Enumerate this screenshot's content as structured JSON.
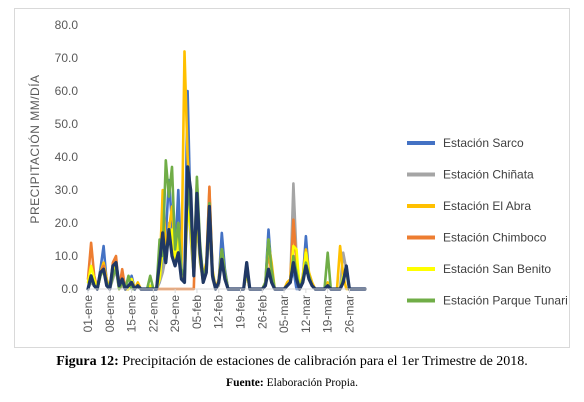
{
  "caption": {
    "label": "Figura 12:",
    "text": " Precipitación de estaciones de calibración para el 1er Trimestre de 2018.",
    "source_label": "Fuente:",
    "source_text": " Elaboración Propia."
  },
  "chart_data": {
    "type": "line",
    "title": "",
    "xlabel": "",
    "ylabel": "PRECIPITACIÓN MM/DÍA",
    "ylim": [
      0,
      80
    ],
    "yticks": [
      "0.0",
      "10.0",
      "20.0",
      "30.0",
      "40.0",
      "50.0",
      "60.0",
      "70.0",
      "80.0"
    ],
    "grid": false,
    "legend": "right",
    "x_tick_labels": [
      "01-ene",
      "08-ene",
      "15-ene",
      "22-ene",
      "29-ene",
      "05-feb",
      "12-feb",
      "19-feb",
      "26-feb",
      "05-mar",
      "12-mar",
      "19-mar",
      "26-mar"
    ],
    "x_tick_days": [
      1,
      8,
      15,
      22,
      29,
      36,
      43,
      50,
      57,
      64,
      71,
      78,
      85
    ],
    "x_days": [
      1,
      2,
      3,
      4,
      5,
      6,
      7,
      8,
      9,
      10,
      11,
      12,
      13,
      14,
      15,
      16,
      17,
      18,
      19,
      20,
      21,
      22,
      23,
      24,
      25,
      26,
      27,
      28,
      29,
      30,
      31,
      32,
      33,
      34,
      35,
      36,
      37,
      38,
      39,
      40,
      41,
      42,
      43,
      44,
      45,
      46,
      47,
      48,
      49,
      50,
      51,
      52,
      53,
      54,
      55,
      56,
      57,
      58,
      59,
      60,
      61,
      62,
      63,
      64,
      65,
      66,
      67,
      68,
      69,
      70,
      71,
      72,
      73,
      74,
      75,
      76,
      77,
      78,
      79,
      80,
      81,
      82,
      83,
      84,
      85,
      86,
      87,
      88,
      89,
      90
    ],
    "series": [
      {
        "name": "Estación Sarco",
        "color": "#4472c4",
        "values": [
          0,
          3,
          1,
          0,
          6,
          13,
          2,
          0,
          5,
          8,
          0,
          2,
          0,
          0,
          4,
          0,
          1,
          0,
          0,
          0,
          1,
          0,
          0,
          2,
          8,
          16,
          33,
          20,
          10,
          30,
          5,
          3,
          60,
          20,
          5,
          29,
          10,
          2,
          6,
          25,
          5,
          0,
          2,
          17,
          6,
          0,
          0,
          0,
          0,
          0,
          0,
          8,
          0,
          0,
          0,
          0,
          0,
          2,
          18,
          5,
          0,
          0,
          0,
          0,
          1,
          2,
          6,
          0,
          0,
          3,
          16,
          4,
          1,
          0,
          0,
          0,
          0,
          1,
          0,
          0,
          0,
          0,
          2,
          7,
          0,
          0,
          0,
          0,
          0,
          0
        ]
      },
      {
        "name": "Estación Chiñata",
        "color": "#a5a5a5",
        "values": [
          0,
          2,
          1,
          0,
          4,
          6,
          2,
          0,
          3,
          6,
          0,
          1,
          0,
          0,
          2,
          0,
          1,
          0,
          0,
          0,
          1,
          0,
          0,
          2,
          5,
          10,
          20,
          15,
          8,
          18,
          4,
          2,
          30,
          15,
          4,
          20,
          8,
          2,
          5,
          18,
          3,
          0,
          1,
          10,
          4,
          0,
          0,
          0,
          0,
          0,
          0,
          5,
          0,
          0,
          0,
          0,
          0,
          1,
          12,
          4,
          0,
          0,
          0,
          0,
          1,
          2,
          32,
          10,
          0,
          2,
          10,
          3,
          1,
          0,
          0,
          0,
          0,
          1,
          0,
          0,
          0,
          0,
          11,
          6,
          0,
          0,
          0,
          0,
          0,
          0
        ]
      },
      {
        "name": "Estación El Abra",
        "color": "#ffc000",
        "values": [
          0,
          4,
          2,
          0,
          5,
          8,
          3,
          0,
          6,
          9,
          0,
          3,
          0,
          0,
          3,
          0,
          2,
          0,
          0,
          0,
          1,
          0,
          0,
          4,
          30,
          12,
          18,
          25,
          10,
          20,
          6,
          72,
          40,
          25,
          8,
          30,
          12,
          4,
          8,
          30,
          6,
          0,
          3,
          12,
          5,
          0,
          0,
          0,
          0,
          0,
          0,
          6,
          0,
          0,
          0,
          0,
          0,
          2,
          14,
          8,
          0,
          0,
          0,
          0,
          2,
          3,
          20,
          8,
          0,
          4,
          12,
          5,
          2,
          0,
          0,
          0,
          0,
          2,
          0,
          0,
          0,
          13,
          4,
          0,
          0,
          0,
          0,
          0,
          0,
          0
        ]
      },
      {
        "name": "Estación Chimboco",
        "color": "#ed7d31",
        "values": [
          3,
          14,
          4,
          0,
          5,
          7,
          2,
          0,
          8,
          10,
          0,
          6,
          0,
          0,
          3,
          0,
          1,
          0,
          0,
          0,
          0,
          0,
          0,
          0,
          0,
          0,
          0,
          0,
          0,
          0,
          0,
          0,
          0,
          0,
          0,
          33,
          10,
          2,
          6,
          31,
          4,
          0,
          2,
          10,
          4,
          0,
          0,
          0,
          0,
          0,
          0,
          5,
          0,
          0,
          0,
          0,
          0,
          1,
          12,
          4,
          0,
          0,
          0,
          0,
          1,
          2,
          21,
          8,
          0,
          2,
          10,
          3,
          1,
          0,
          0,
          0,
          0,
          1,
          0,
          0,
          0,
          0,
          3,
          5,
          0,
          0,
          0,
          0,
          0,
          0
        ]
      },
      {
        "name": "Estación San Benito",
        "color": "#ffff00",
        "values": [
          2,
          7,
          3,
          0,
          4,
          6,
          2,
          0,
          5,
          7,
          0,
          2,
          0,
          0,
          3,
          0,
          1,
          0,
          0,
          0,
          1,
          0,
          0,
          3,
          12,
          10,
          15,
          18,
          8,
          16,
          4,
          3,
          25,
          18,
          4,
          22,
          9,
          2,
          6,
          20,
          4,
          0,
          2,
          10,
          4,
          0,
          0,
          0,
          0,
          0,
          0,
          5,
          0,
          0,
          0,
          0,
          0,
          1,
          15,
          5,
          0,
          0,
          0,
          0,
          1,
          2,
          13,
          12,
          0,
          3,
          11,
          4,
          1,
          0,
          0,
          0,
          0,
          1,
          0,
          0,
          0,
          0,
          4,
          5,
          0,
          0,
          0,
          0,
          0,
          0
        ]
      },
      {
        "name": "Estación Parque Tunari",
        "color": "#70ad47",
        "values": [
          0,
          3,
          1,
          0,
          4,
          6,
          2,
          0,
          4,
          6,
          0,
          2,
          0,
          4,
          0,
          0,
          1,
          0,
          0,
          0,
          4,
          0,
          0,
          15,
          10,
          39,
          28,
          37,
          12,
          20,
          6,
          4,
          32,
          22,
          6,
          34,
          14,
          3,
          7,
          26,
          5,
          0,
          2,
          12,
          5,
          0,
          0,
          0,
          0,
          0,
          0,
          6,
          0,
          0,
          0,
          0,
          0,
          2,
          15,
          6,
          0,
          0,
          0,
          0,
          1,
          2,
          10,
          5,
          0,
          3,
          8,
          4,
          1,
          0,
          0,
          0,
          0,
          11,
          0,
          0,
          0,
          0,
          3,
          6,
          0,
          0,
          0,
          0,
          0,
          0
        ]
      },
      {
        "name": "",
        "color": "#203864",
        "values": [
          0,
          4,
          1,
          0,
          5,
          6,
          1,
          0,
          7,
          8,
          1,
          3,
          0,
          1,
          2,
          0,
          1,
          0,
          0,
          0,
          0,
          0,
          0,
          8,
          17,
          8,
          18,
          10,
          7,
          11,
          3,
          2,
          37,
          30,
          4,
          29,
          11,
          2,
          5,
          25,
          4,
          0,
          2,
          9,
          3,
          0,
          0,
          0,
          0,
          0,
          0,
          8,
          0,
          0,
          0,
          0,
          0,
          1,
          6,
          2,
          0,
          0,
          0,
          0,
          1,
          2,
          8,
          3,
          0,
          2,
          7,
          3,
          1,
          0,
          0,
          0,
          0,
          1,
          0,
          0,
          0,
          0,
          2,
          7,
          0,
          0,
          0,
          0,
          0,
          0
        ]
      }
    ]
  }
}
